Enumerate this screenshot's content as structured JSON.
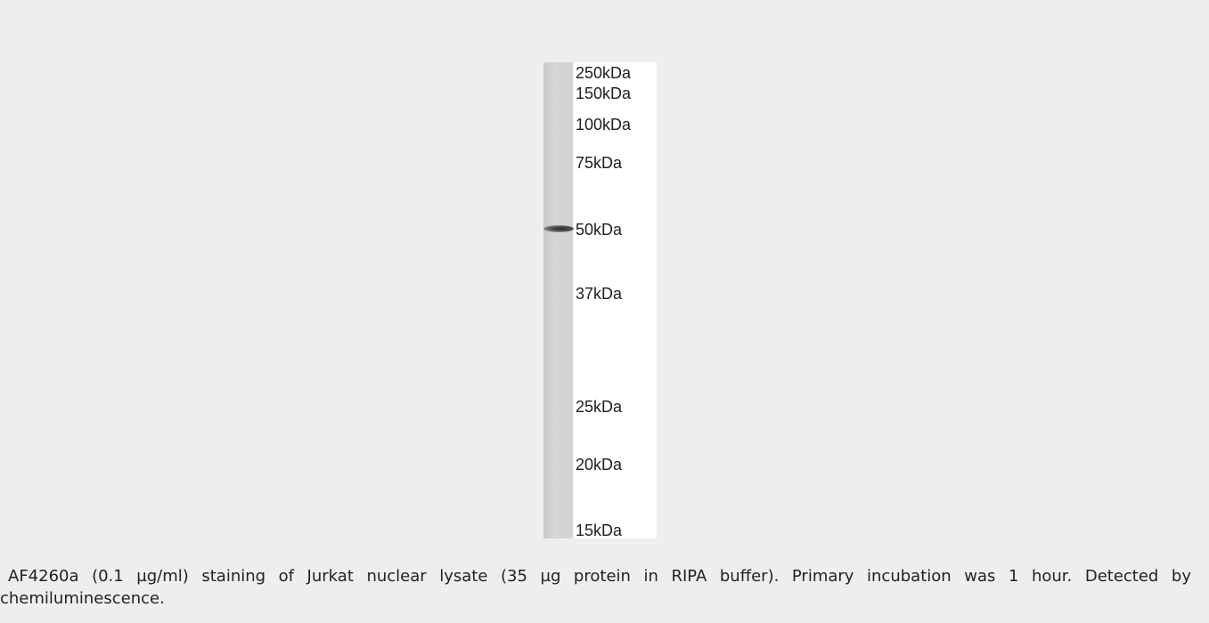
{
  "blot": {
    "markers": [
      "250kDa",
      "150kDa",
      "100kDa",
      "75kDa",
      "50kDa",
      "37kDa",
      "25kDa",
      "20kDa",
      "15kDa"
    ]
  },
  "caption": "AF4260a (0.1 µg/ml) staining of Jurkat nuclear lysate (35 µg protein in RIPA buffer). Primary incubation was 1 hour. Detected by chemiluminescence."
}
